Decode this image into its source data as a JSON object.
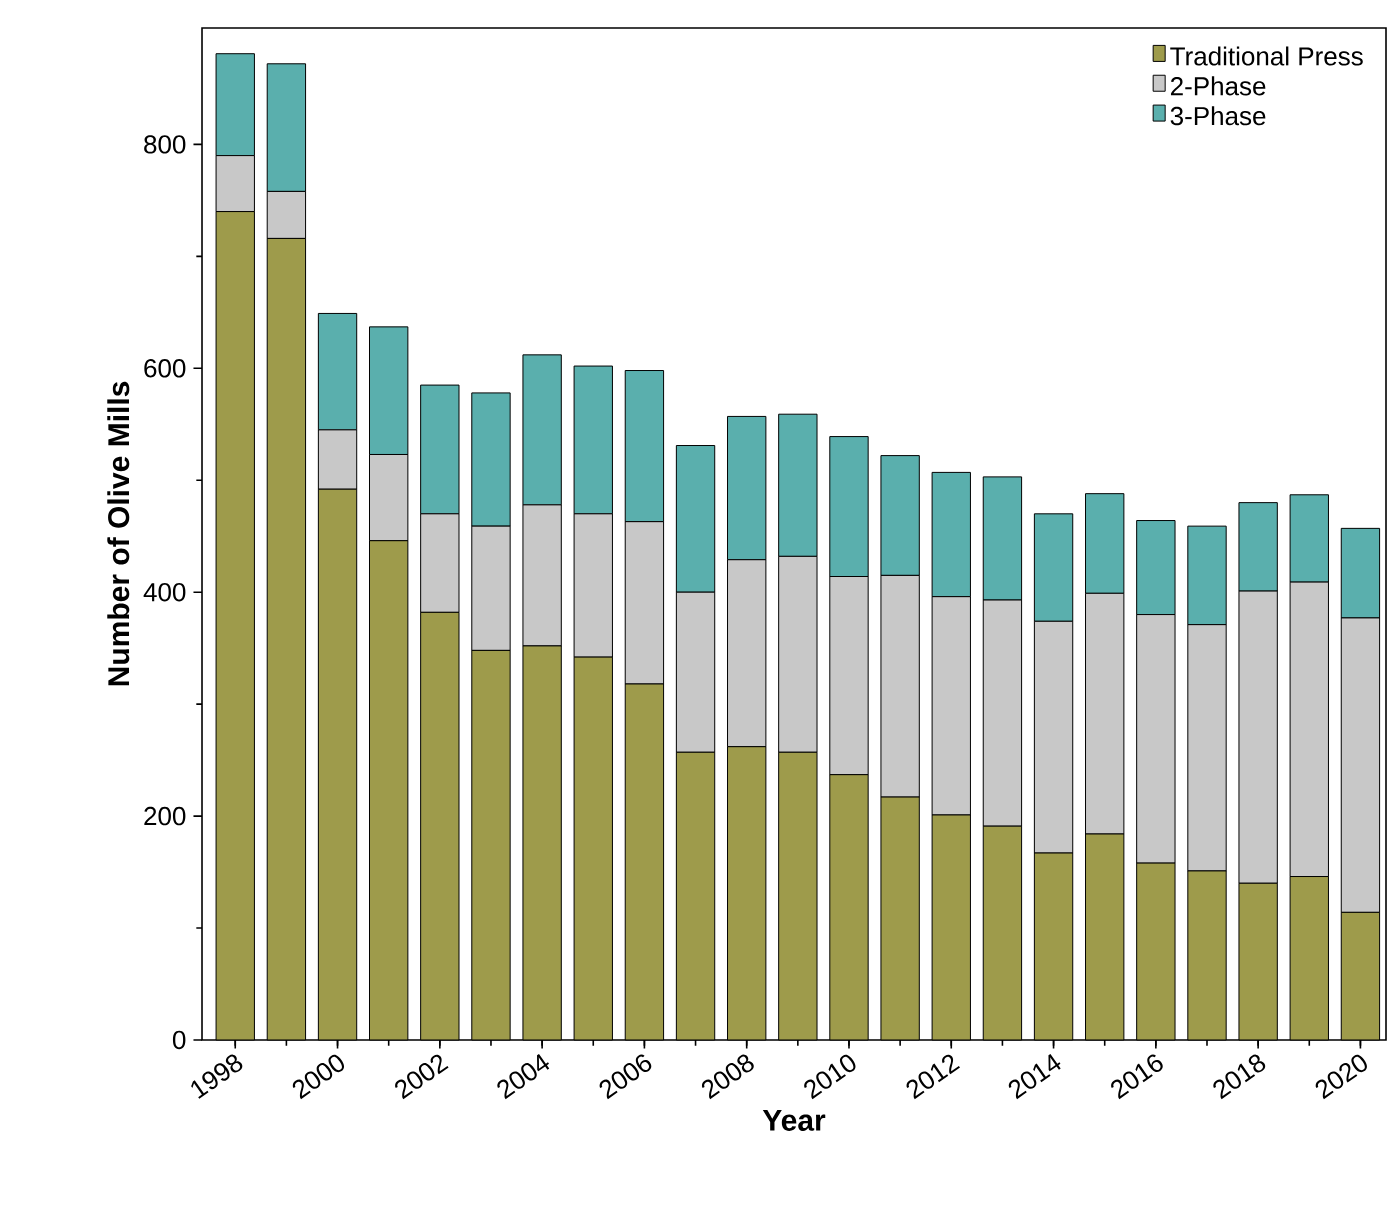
{
  "chart_data": {
    "type": "bar",
    "stacked": true,
    "xlabel": "Year",
    "ylabel": "Number of Olive Mills",
    "x": [
      1998,
      1999,
      2000,
      2001,
      2002,
      2003,
      2004,
      2005,
      2006,
      2007,
      2008,
      2009,
      2010,
      2011,
      2012,
      2013,
      2014,
      2015,
      2016,
      2017,
      2018,
      2019,
      2020
    ],
    "series": [
      {
        "name": "Traditional Press",
        "color": "#9e9b4b",
        "values": [
          740,
          716,
          492,
          446,
          382,
          348,
          352,
          342,
          318,
          257,
          262,
          257,
          237,
          217,
          201,
          191,
          167,
          184,
          158,
          151,
          140,
          146,
          114
        ]
      },
      {
        "name": "2-Phase",
        "color": "#c8c8c8",
        "values": [
          50,
          42,
          53,
          77,
          88,
          111,
          126,
          128,
          145,
          143,
          167,
          175,
          177,
          198,
          195,
          202,
          207,
          215,
          222,
          220,
          261,
          263,
          263
        ]
      },
      {
        "name": "3-Phase",
        "color": "#5aafad",
        "values": [
          91,
          114,
          104,
          114,
          115,
          119,
          134,
          132,
          135,
          131,
          128,
          127,
          125,
          107,
          111,
          110,
          96,
          89,
          84,
          88,
          79,
          78,
          80
        ]
      }
    ],
    "xlim": [
      1997.35,
      2020.5
    ],
    "xticks": [
      1998,
      2000,
      2002,
      2004,
      2006,
      2008,
      2010,
      2012,
      2014,
      2016,
      2018,
      2020
    ],
    "ylim": [
      0,
      904
    ],
    "yticks": [
      0,
      200,
      400,
      600,
      800
    ],
    "grid": false,
    "legend": "top right"
  }
}
